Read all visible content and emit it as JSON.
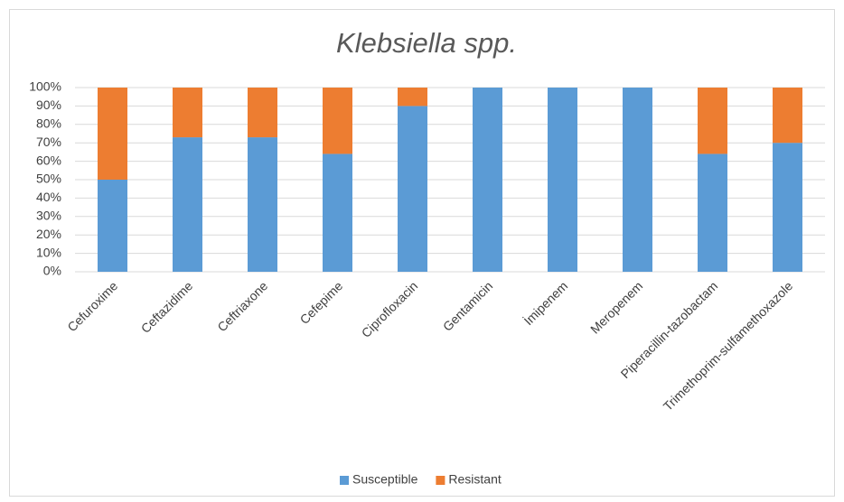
{
  "chart_data": {
    "type": "stacked_bar",
    "title": "Klebsiella spp.",
    "categories": [
      "Cefuroxime",
      "Ceftazidime",
      "Ceftriaxone",
      "Cefepime",
      "Ciprofloxacin",
      "Gentamicin",
      "İmipenem",
      "Meropenem",
      "Piperacillin-tazobactam",
      "Trimethoprim-sulfamethoxazole"
    ],
    "series": [
      {
        "name": "Susceptible",
        "color": "#5b9bd5",
        "values": [
          50,
          73,
          73,
          64,
          90,
          100,
          100,
          100,
          64,
          70
        ]
      },
      {
        "name": "Resistant",
        "color": "#ed7d31",
        "values": [
          50,
          27,
          27,
          36,
          10,
          0,
          0,
          0,
          36,
          30
        ]
      }
    ],
    "ylim": [
      0,
      100
    ],
    "yticks": [
      {
        "value": 0,
        "label": "0%"
      },
      {
        "value": 10,
        "label": "10%"
      },
      {
        "value": 20,
        "label": "20%"
      },
      {
        "value": 30,
        "label": "30%"
      },
      {
        "value": 40,
        "label": "40%"
      },
      {
        "value": 50,
        "label": "50%"
      },
      {
        "value": 60,
        "label": "60%"
      },
      {
        "value": 70,
        "label": "70%"
      },
      {
        "value": 80,
        "label": "80%"
      },
      {
        "value": 90,
        "label": "90%"
      },
      {
        "value": 100,
        "label": "100%"
      }
    ],
    "grid": true,
    "legend": "bottom"
  }
}
